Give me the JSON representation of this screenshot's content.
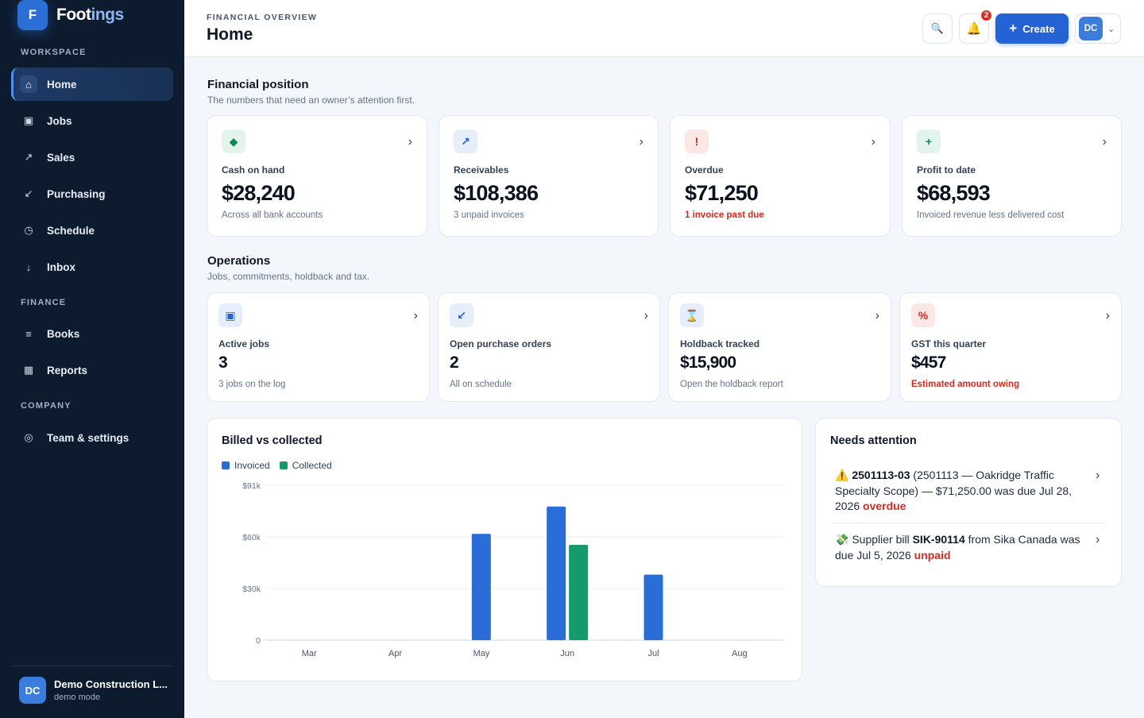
{
  "brand": {
    "logo_letter": "F",
    "name_part1": "Foot",
    "name_part2": "ings"
  },
  "sidebar": {
    "sections": [
      "WORKSPACE",
      "FINANCE",
      "COMPANY"
    ],
    "items": [
      {
        "label": "Home",
        "icon": "home-icon",
        "glyph": "⌂",
        "active": true
      },
      {
        "label": "Jobs",
        "icon": "jobs-icon",
        "glyph": "▣"
      },
      {
        "label": "Sales",
        "icon": "sales-arrow-icon",
        "glyph": "↗"
      },
      {
        "label": "Purchasing",
        "icon": "purchasing-arrow-icon",
        "glyph": "↙"
      },
      {
        "label": "Schedule",
        "icon": "clock-icon",
        "glyph": "◷"
      },
      {
        "label": "Inbox",
        "icon": "inbox-arrow-icon",
        "glyph": "↓"
      },
      {
        "label": "Books",
        "icon": "books-icon",
        "glyph": "≡"
      },
      {
        "label": "Reports",
        "icon": "reports-icon",
        "glyph": "▦"
      },
      {
        "label": "Team & settings",
        "icon": "settings-icon",
        "glyph": "◎"
      }
    ],
    "org": {
      "initials": "DC",
      "name": "Demo Construction L...",
      "mode": "demo mode"
    }
  },
  "header": {
    "eyebrow": "FINANCIAL OVERVIEW",
    "title": "Home",
    "search_glyph": "🔍",
    "bell_glyph": "🔔",
    "notification_count": "2",
    "create_plus": "+",
    "create_label": "Create",
    "user_initials": "DC",
    "user_chevron": "⌄"
  },
  "financial": {
    "title": "Financial position",
    "subtitle": "The numbers that need an owner’s attention first.",
    "cards": [
      {
        "icon": "diamond-icon",
        "glyph": "◆",
        "tone": "green",
        "label": "Cash on hand",
        "value": "$28,240",
        "note": "Across all bank accounts",
        "alert": false
      },
      {
        "icon": "arrow-up-right-icon",
        "glyph": "↗",
        "tone": "blue",
        "label": "Receivables",
        "value": "$108,386",
        "note": "3 unpaid invoices",
        "alert": false
      },
      {
        "icon": "exclamation-icon",
        "glyph": "!",
        "tone": "red",
        "label": "Overdue",
        "value": "$71,250",
        "note": "1 invoice past due",
        "alert": true
      },
      {
        "icon": "plus-icon",
        "glyph": "+",
        "tone": "green",
        "label": "Profit to date",
        "value": "$68,593",
        "note": "Invoiced revenue less delivered cost",
        "alert": false
      }
    ]
  },
  "operations": {
    "title": "Operations",
    "subtitle": "Jobs, commitments, holdback and tax.",
    "cards": [
      {
        "icon": "jobs-square-icon",
        "glyph": "▣",
        "tone": "blue",
        "label": "Active jobs",
        "value": "3",
        "note": "3 jobs on the log",
        "alert": false
      },
      {
        "icon": "arrow-down-left-icon",
        "glyph": "↙",
        "tone": "blue",
        "label": "Open purchase orders",
        "value": "2",
        "note": "All on schedule",
        "alert": false
      },
      {
        "icon": "hourglass-icon",
        "glyph": "⌛",
        "tone": "amber",
        "label": "Holdback tracked",
        "value": "$15,900",
        "note": "Open the holdback report",
        "alert": false
      },
      {
        "icon": "percent-icon",
        "glyph": "%",
        "tone": "red",
        "label": "GST this quarter",
        "value": "$457",
        "note": "Estimated amount owing",
        "alert": true
      }
    ]
  },
  "card_chevron": "›",
  "colors": {
    "invoiced": "#2a6dd6",
    "collected": "#159a6b",
    "alert": "#d42a1f",
    "accent": "#2563d4",
    "sidebar_bg": "#0d1b2e"
  },
  "chart_data": {
    "type": "bar",
    "title": "Billed vs collected",
    "categories": [
      "Mar",
      "Apr",
      "May",
      "Jun",
      "Jul",
      "Aug"
    ],
    "series": [
      {
        "name": "Invoiced",
        "values": [
          0,
          0,
          62500,
          78500,
          38500,
          0
        ]
      },
      {
        "name": "Collected",
        "values": [
          0,
          0,
          0,
          56000,
          0,
          0
        ]
      }
    ],
    "ylim": [
      0,
      91000
    ],
    "yticks": [
      {
        "value": 0,
        "label": "0"
      },
      {
        "value": 30333,
        "label": "$30k"
      },
      {
        "value": 60666,
        "label": "$60k"
      },
      {
        "value": 91000,
        "label": "$91k"
      }
    ],
    "grid": true,
    "legend": "top-left"
  },
  "attention": {
    "title": "Needs attention",
    "items": [
      {
        "emoji": "⚠️",
        "ref": "2501113-03",
        "text": " (2501113 — Oakridge Traffic Specialty Scope) — $71,250.00 was due Jul 28, 2026 ",
        "status": "overdue"
      },
      {
        "emoji": "💸",
        "prefix": " Supplier bill ",
        "ref": "SIK-90114",
        "text": " from Sika Canada was due Jul 5, 2026 ",
        "status": "unpaid"
      }
    ]
  }
}
